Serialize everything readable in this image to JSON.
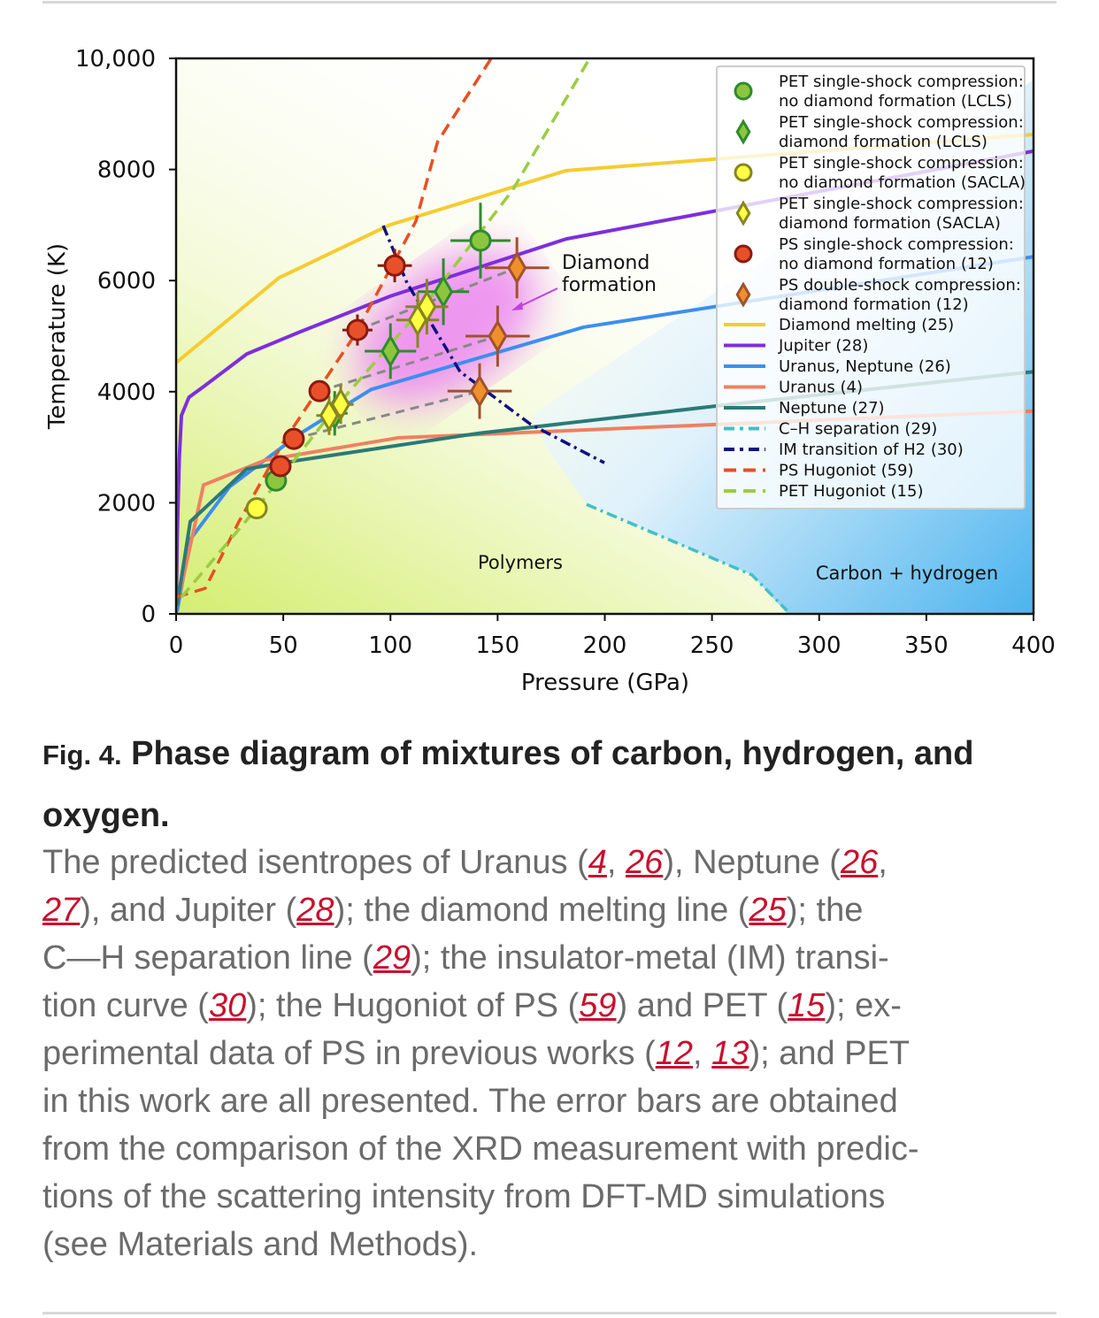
{
  "chart_data": {
    "type": "scatter",
    "xlabel": "Pressure (GPa)",
    "ylabel": "Temperature (K)",
    "xlim": [
      0,
      400
    ],
    "ylim": [
      0,
      10000
    ],
    "xticks": [
      0,
      50,
      100,
      150,
      200,
      250,
      300,
      350,
      400
    ],
    "yticks": [
      0,
      2000,
      4000,
      6000,
      8000,
      10000
    ],
    "ytick_labels": [
      "0",
      "2000",
      "4000",
      "6000",
      "8000",
      "10,000"
    ],
    "legend_position": "top-right",
    "annotations": {
      "diamond_formation_line1": "Diamond",
      "diamond_formation_line2": "formation",
      "polymers": "Polymers",
      "carbon_hydrogen": "Carbon + hydrogen"
    },
    "lines": [
      {
        "name": "Diamond melting (25)",
        "color": "#f5cc30",
        "style": "solid",
        "points": [
          [
            0,
            4520
          ],
          [
            48,
            6050
          ],
          [
            99.5,
            7000
          ],
          [
            182,
            7980
          ],
          [
            400,
            8630
          ]
        ]
      },
      {
        "name": "Jupiter (28)",
        "color": "#7d2fdc",
        "style": "solid",
        "points": [
          [
            0,
            0
          ],
          [
            0.6,
            1500
          ],
          [
            1.5,
            2800
          ],
          [
            2.5,
            3570
          ],
          [
            6,
            3900
          ],
          [
            12.8,
            4090
          ],
          [
            33,
            4680
          ],
          [
            58,
            5080
          ],
          [
            100,
            5720
          ],
          [
            182,
            6750
          ],
          [
            400,
            8330
          ]
        ]
      },
      {
        "name": "Uranus, Neptune (26)",
        "color": "#3d8ef0",
        "style": "solid",
        "points": [
          [
            0.5,
            50
          ],
          [
            6.6,
            1340
          ],
          [
            25,
            2290
          ],
          [
            58,
            3250
          ],
          [
            91,
            4040
          ],
          [
            190,
            5160
          ],
          [
            400,
            6430
          ]
        ]
      },
      {
        "name": "Uranus (4)",
        "color": "#f08060",
        "style": "solid",
        "points": [
          [
            0.5,
            150
          ],
          [
            12.8,
            2320
          ],
          [
            41.7,
            2770
          ],
          [
            103.6,
            3170
          ],
          [
            400,
            3650
          ]
        ]
      },
      {
        "name": "Neptune (27)",
        "color": "#2a7a78",
        "style": "solid",
        "points": [
          [
            0.5,
            150
          ],
          [
            6.6,
            1660
          ],
          [
            33,
            2610
          ],
          [
            58,
            2770
          ],
          [
            141,
            3250
          ],
          [
            256,
            3760
          ],
          [
            400,
            4360
          ]
        ]
      },
      {
        "name": "C–H separation (29)",
        "color": "#40c0c8",
        "style": "dashdot",
        "points": [
          [
            191.5,
            1970
          ],
          [
            268.7,
            700
          ],
          [
            285,
            60
          ]
        ]
      },
      {
        "name": "IM transition of H2 (30)",
        "color": "#101080",
        "style": "dashdot",
        "points": [
          [
            96.6,
            6990
          ],
          [
            107.7,
            5960
          ],
          [
            132.5,
            4360
          ],
          [
            165.5,
            3410
          ],
          [
            199.8,
            2720
          ]
        ]
      },
      {
        "name": "PS Hugoniot (59)",
        "color": "#e85020",
        "style": "dashed",
        "points": [
          [
            0,
            300
          ],
          [
            13.6,
            460
          ],
          [
            29.3,
            1660
          ],
          [
            50,
            3090
          ],
          [
            83,
            5000
          ],
          [
            111.9,
            7070
          ],
          [
            122,
            8500
          ],
          [
            147,
            10000
          ]
        ]
      },
      {
        "name": "PET Hugoniot (15)",
        "color": "#9acd40",
        "style": "dashed",
        "points": [
          [
            2.5,
            300
          ],
          [
            37.6,
            1900
          ],
          [
            74.7,
            3730
          ],
          [
            116,
            5560
          ],
          [
            157,
            7630
          ],
          [
            192,
            9940
          ]
        ]
      }
    ],
    "tie_lines": [
      [
        [
          84.6,
          5110
        ],
        [
          159,
          6230
        ]
      ],
      [
        [
          66.9,
          4010
        ],
        [
          150,
          5000
        ]
      ],
      [
        [
          54.9,
          3150
        ],
        [
          141.6,
          4010
        ]
      ]
    ],
    "series": [
      {
        "name": "PET single-shock compression: no diamond formation (LCLS)",
        "label1": "PET single-shock compression:",
        "label2": "no diamond formation (LCLS)",
        "marker": "circle",
        "fill": "#8cc63f",
        "stroke": "#2e8b2e",
        "points": [
          [
            142,
            6720,
            14,
            680
          ],
          [
            46.6,
            2400,
            0,
            0
          ]
        ]
      },
      {
        "name": "PET single-shock compression: diamond formation (LCLS)",
        "label1": "PET single-shock compression:",
        "label2": "diamond formation (LCLS)",
        "marker": "diamond",
        "fill": "#8cc63f",
        "stroke": "#2e8b2e",
        "points": [
          [
            124.7,
            5800,
            12,
            600
          ],
          [
            100,
            4730,
            12,
            500
          ],
          [
            74,
            3610,
            6,
            400
          ]
        ]
      },
      {
        "name": "PET single-shock compression: no diamond formation (SACLA)",
        "label1": "PET single-shock compression:",
        "label2": "no diamond formation (SACLA)",
        "marker": "circle",
        "fill": "#ffff44",
        "stroke": "#86861e",
        "points": [
          [
            37.6,
            1900,
            0,
            0
          ]
        ]
      },
      {
        "name": "PET single-shock compression: diamond formation (SACLA)",
        "label1": "PET single-shock compression:",
        "label2": "diamond formation (SACLA)",
        "marker": "diamond",
        "fill": "#ffff44",
        "stroke": "#86861e",
        "points": [
          [
            112.7,
            5290,
            10,
            500
          ],
          [
            117,
            5530,
            10,
            500
          ],
          [
            76.8,
            3770,
            6,
            350
          ],
          [
            71.4,
            3570,
            6,
            350
          ]
        ]
      },
      {
        "name": "PS single-shock compression: no diamond formation (12)",
        "label1": "PS single-shock compression:",
        "label2": "no diamond formation (12)",
        "marker": "circle",
        "fill": "#e8502a",
        "stroke": "#8b1a10",
        "points": [
          [
            102,
            6270,
            8,
            300
          ],
          [
            84.6,
            5110,
            7,
            280
          ],
          [
            66.9,
            4010,
            0,
            150
          ],
          [
            54.9,
            3150,
            0,
            0
          ],
          [
            48.7,
            2660,
            0,
            0
          ]
        ]
      },
      {
        "name": "PS double-shock compression: diamond formation (12)",
        "label1": "PS double-shock compression:",
        "label2": "diamond formation (12)",
        "marker": "diamond",
        "fill": "#f0902a",
        "stroke": "#a0522d",
        "points": [
          [
            159,
            6230,
            15,
            550
          ],
          [
            150,
            5000,
            15,
            550
          ],
          [
            141.6,
            4010,
            15,
            500
          ]
        ]
      }
    ]
  },
  "caption": {
    "fig_label": "Fig. 4.",
    "title": "Phase diagram of mixtures of carbon, hydrogen, and oxygen.",
    "lines": [
      [
        {
          "t": "The predicted isentropes of Uranus ("
        },
        {
          "r": "4"
        },
        {
          "t": ", "
        },
        {
          "r": "26"
        },
        {
          "t": "), Neptune ("
        },
        {
          "r": "26"
        },
        {
          "t": ","
        }
      ],
      [
        {
          "r": "27"
        },
        {
          "t": "), and Jupiter ("
        },
        {
          "r": "28"
        },
        {
          "t": "); the diamond melting line ("
        },
        {
          "r": "25"
        },
        {
          "t": "); the"
        }
      ],
      [
        {
          "t": "C—H separation line ("
        },
        {
          "r": "29"
        },
        {
          "t": "); the insulator-metal (IM) transi-"
        }
      ],
      [
        {
          "t": "tion curve ("
        },
        {
          "r": "30"
        },
        {
          "t": "); the Hugoniot of PS ("
        },
        {
          "r": "59"
        },
        {
          "t": ") and PET ("
        },
        {
          "r": "15"
        },
        {
          "t": "); ex-"
        }
      ],
      [
        {
          "t": "perimental data of PS in previous works ("
        },
        {
          "r": "12"
        },
        {
          "t": ", "
        },
        {
          "r": "13"
        },
        {
          "t": "); and PET"
        }
      ],
      [
        {
          "t": "in this work are all presented. The error bars are obtained"
        }
      ],
      [
        {
          "t": "from the comparison of the XRD measurement with predic-"
        }
      ],
      [
        {
          "t": "tions of the scattering intensity from DFT-MD simulations"
        }
      ],
      [
        {
          "t": "(see Materials and Methods)."
        }
      ]
    ]
  }
}
